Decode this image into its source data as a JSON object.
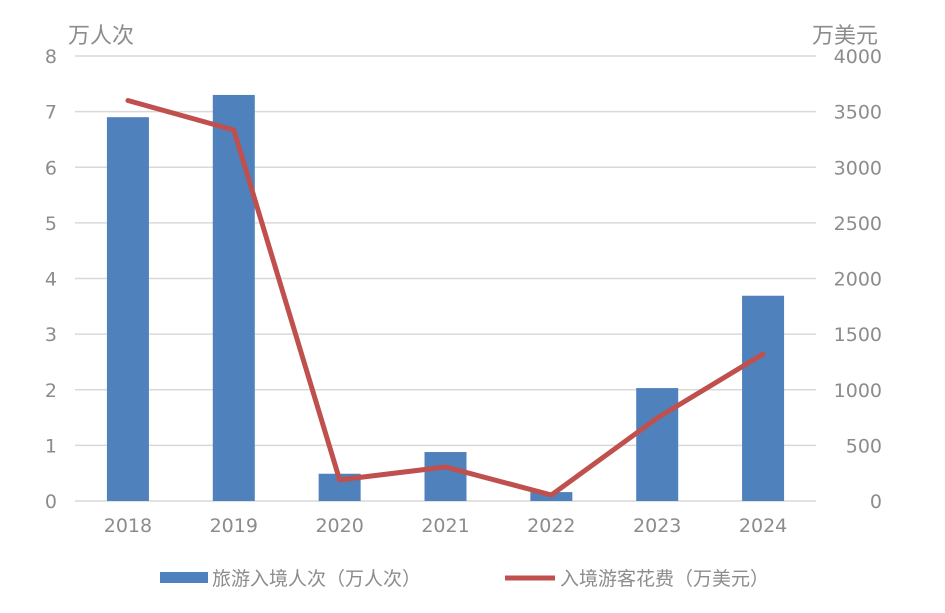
{
  "chart_data": {
    "type": "bar+line",
    "categories": [
      "2018",
      "2019",
      "2020",
      "2021",
      "2022",
      "2023",
      "2024"
    ],
    "y_left": {
      "unit_label": "万人次",
      "range": [
        0,
        8
      ],
      "ticks": [
        0,
        1,
        2,
        3,
        4,
        5,
        6,
        7,
        8
      ]
    },
    "y_right": {
      "unit_label": "万美元",
      "range": [
        0,
        4000
      ],
      "ticks": [
        0,
        500,
        1000,
        1500,
        2000,
        2500,
        3000,
        3500,
        4000
      ]
    },
    "series": [
      {
        "name": "旅游入境人次（万人次）",
        "type": "bar",
        "axis": "left",
        "color": "#4f81bd",
        "values": [
          6.9,
          7.3,
          0.49,
          0.88,
          0.16,
          2.03,
          3.69
        ]
      },
      {
        "name": "入境游客花费（万美元）",
        "type": "line",
        "axis": "right",
        "color": "#c0504d",
        "values": [
          3600,
          3335,
          190,
          306,
          54,
          746,
          1321
        ]
      }
    ],
    "grid": true,
    "legend_position": "bottom"
  }
}
